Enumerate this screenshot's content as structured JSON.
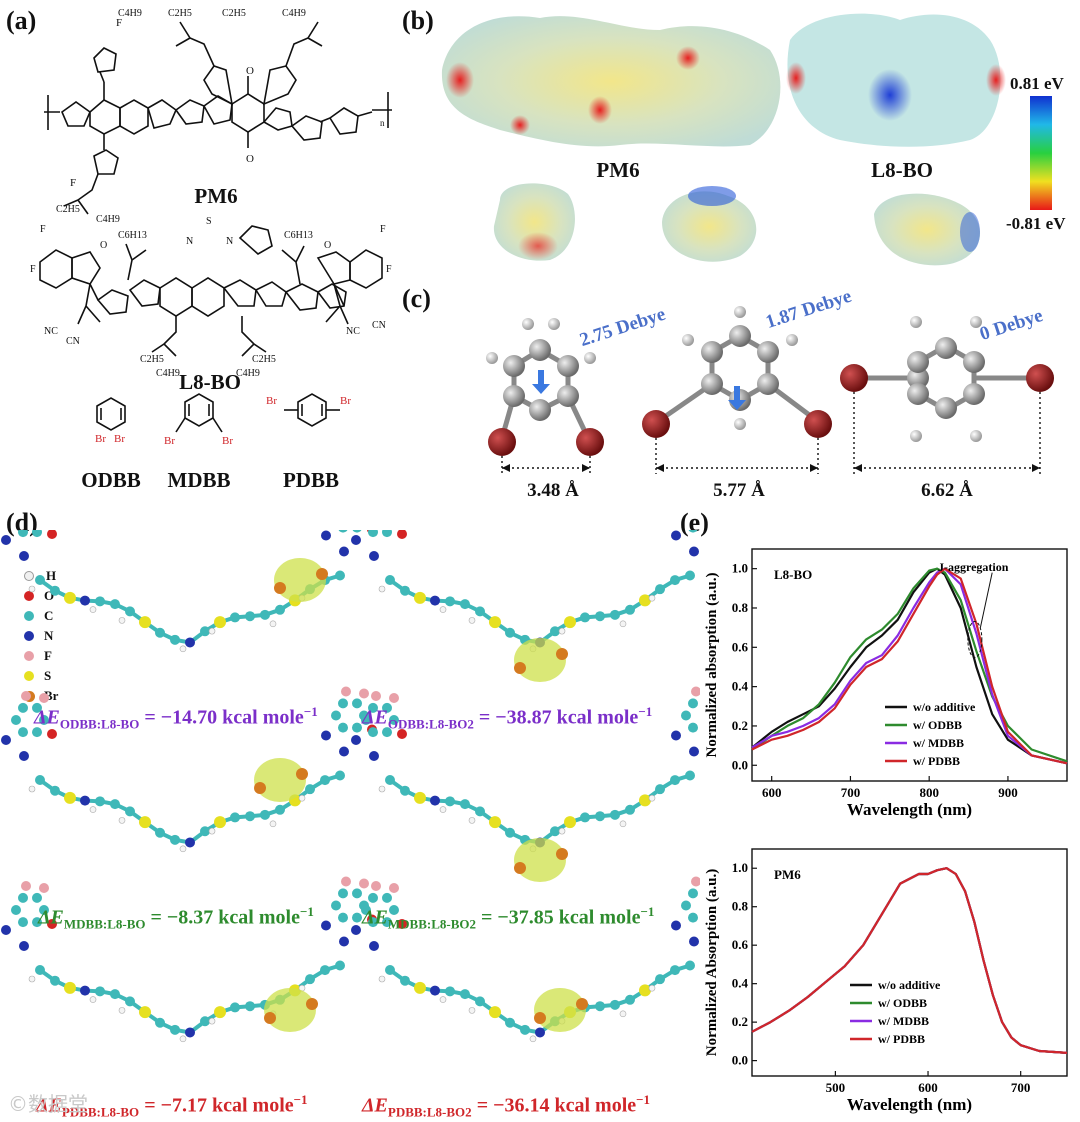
{
  "panels": {
    "a": "(a)",
    "b": "(b)",
    "c": "(c)",
    "d": "(d)",
    "e": "(e)"
  },
  "panel_a": {
    "pm6": "PM6",
    "l8bo": "L8-BO",
    "additives": [
      {
        "name": "ODBB",
        "br": [
          "Br",
          "Br"
        ]
      },
      {
        "name": "MDBB",
        "br": [
          "Br",
          "Br"
        ]
      },
      {
        "name": "PDBB",
        "br": [
          "Br",
          "Br"
        ]
      }
    ],
    "subs": {
      "c2h5": "C2H5",
      "c4h9": "C4H9",
      "c6h13": "C6H13",
      "f": "F",
      "o": "O",
      "s": "S",
      "n": "N",
      "nc": "NC",
      "cn": "CN",
      "n_sub": "n"
    }
  },
  "panel_b": {
    "pm6": "PM6",
    "l8bo": "L8-BO",
    "colorbar_max": "0.81 eV",
    "colorbar_min": "-0.81 eV"
  },
  "panel_c": {
    "molecules": [
      {
        "dipole": "2.75 Debye",
        "distance": "3.48 Å"
      },
      {
        "dipole": "1.87 Debye",
        "distance": "5.77 Å"
      },
      {
        "dipole": "0 Debye",
        "distance": "6.62 Å"
      }
    ]
  },
  "panel_d": {
    "legend": [
      {
        "el": "H",
        "color": "#f0f0f0"
      },
      {
        "el": "O",
        "color": "#d42424"
      },
      {
        "el": "C",
        "color": "#3fb8b8"
      },
      {
        "el": "N",
        "color": "#2233aa"
      },
      {
        "el": "F",
        "color": "#e8a0a8"
      },
      {
        "el": "S",
        "color": "#e6e020"
      },
      {
        "el": "Br",
        "color": "#d47a1f"
      }
    ],
    "energies": [
      {
        "prefix": "ΔE",
        "sub": "ODBB:L8-BO",
        "value": " = −14.70 kcal mole",
        "sup": "−1"
      },
      {
        "prefix": "ΔE",
        "sub": "ODBB:L8-BO2",
        "value": " = −38.87 kcal mole",
        "sup": "−1"
      },
      {
        "prefix": "ΔE",
        "sub": "MDBB:L8-BO",
        "value": " = −8.37 kcal mole",
        "sup": "−1"
      },
      {
        "prefix": "ΔE",
        "sub": "MDBB:L8-BO2",
        "value": " = −37.85 kcal mole",
        "sup": "−1"
      },
      {
        "prefix": "ΔE",
        "sub": "PDBB:L8-BO",
        "value": " = −7.17 kcal mole",
        "sup": "−1"
      },
      {
        "prefix": "ΔE",
        "sub": "PDBB:L8-BO2",
        "value": " = −36.14 kcal mole",
        "sup": "−1"
      }
    ],
    "colors": {
      "purple": "#7b2fc9",
      "green": "#2e8b2e",
      "red": "#d0262a"
    }
  },
  "watermark": "©数据堂",
  "chart_data": [
    {
      "type": "line",
      "inset_label": "L8-BO",
      "annotation": "J-aggregation",
      "xlabel": "Wavelength (nm)",
      "ylabel": "Normalized absorption (a.u.)",
      "xlim": [
        575,
        975
      ],
      "ylim": [
        -0.08,
        1.1
      ],
      "xticks": [
        600,
        700,
        800,
        900
      ],
      "yticks": [
        0.0,
        0.2,
        0.4,
        0.6,
        0.8,
        1.0
      ],
      "legend_position": "lower-right",
      "series": [
        {
          "name": "w/o additive",
          "color": "#111111",
          "x": [
            575,
            600,
            620,
            640,
            660,
            680,
            700,
            720,
            740,
            760,
            780,
            800,
            810,
            820,
            840,
            860,
            880,
            900,
            930,
            975
          ],
          "y": [
            0.09,
            0.17,
            0.22,
            0.26,
            0.3,
            0.39,
            0.5,
            0.6,
            0.66,
            0.74,
            0.88,
            0.98,
            1.0,
            0.97,
            0.8,
            0.5,
            0.26,
            0.13,
            0.05,
            0.01
          ]
        },
        {
          "name": "w/ ODBB",
          "color": "#2e8b2e",
          "x": [
            575,
            600,
            620,
            640,
            660,
            680,
            700,
            720,
            740,
            760,
            780,
            800,
            810,
            820,
            840,
            860,
            880,
            900,
            930,
            975
          ],
          "y": [
            0.08,
            0.15,
            0.2,
            0.24,
            0.31,
            0.42,
            0.55,
            0.64,
            0.69,
            0.77,
            0.9,
            0.99,
            1.0,
            0.98,
            0.84,
            0.58,
            0.35,
            0.2,
            0.08,
            0.02
          ]
        },
        {
          "name": "w/ MDBB",
          "color": "#8a2be2",
          "x": [
            575,
            600,
            620,
            640,
            660,
            680,
            700,
            720,
            740,
            760,
            780,
            800,
            810,
            820,
            840,
            860,
            880,
            900,
            930,
            975
          ],
          "y": [
            0.09,
            0.15,
            0.17,
            0.2,
            0.24,
            0.31,
            0.43,
            0.52,
            0.56,
            0.66,
            0.8,
            0.93,
            0.98,
            1.0,
            0.92,
            0.67,
            0.36,
            0.15,
            0.05,
            0.01
          ]
        },
        {
          "name": "w/ PDBB",
          "color": "#d0262a",
          "x": [
            575,
            600,
            620,
            640,
            660,
            680,
            700,
            720,
            740,
            760,
            780,
            800,
            810,
            820,
            840,
            860,
            880,
            900,
            930,
            975
          ],
          "y": [
            0.08,
            0.13,
            0.15,
            0.18,
            0.22,
            0.29,
            0.41,
            0.5,
            0.54,
            0.63,
            0.77,
            0.91,
            0.97,
            1.0,
            0.95,
            0.72,
            0.4,
            0.17,
            0.05,
            0.01
          ]
        }
      ]
    },
    {
      "type": "line",
      "inset_label": "PM6",
      "xlabel": "Wavelength (nm)",
      "ylabel": "Normalized Absorption (a.u.)",
      "xlim": [
        410,
        750
      ],
      "ylim": [
        -0.08,
        1.1
      ],
      "xticks": [
        500,
        600,
        700
      ],
      "yticks": [
        0.0,
        0.2,
        0.4,
        0.6,
        0.8,
        1.0
      ],
      "legend_position": "lower-center",
      "series": [
        {
          "name": "w/o additive",
          "color": "#111111",
          "x": [
            410,
            430,
            450,
            470,
            490,
            510,
            530,
            550,
            570,
            590,
            600,
            610,
            620,
            630,
            640,
            650,
            660,
            670,
            680,
            690,
            700,
            720,
            750
          ],
          "y": [
            0.15,
            0.2,
            0.26,
            0.33,
            0.41,
            0.49,
            0.6,
            0.76,
            0.92,
            0.97,
            0.97,
            0.99,
            1.0,
            0.97,
            0.88,
            0.72,
            0.52,
            0.34,
            0.2,
            0.12,
            0.08,
            0.05,
            0.04
          ]
        },
        {
          "name": "w/ ODBB",
          "color": "#2e8b2e",
          "x": [
            410,
            430,
            450,
            470,
            490,
            510,
            530,
            550,
            570,
            590,
            600,
            610,
            620,
            630,
            640,
            650,
            660,
            670,
            680,
            690,
            700,
            720,
            750
          ],
          "y": [
            0.15,
            0.2,
            0.26,
            0.33,
            0.41,
            0.49,
            0.6,
            0.76,
            0.92,
            0.97,
            0.97,
            0.99,
            1.0,
            0.97,
            0.88,
            0.72,
            0.52,
            0.34,
            0.2,
            0.12,
            0.08,
            0.05,
            0.04
          ]
        },
        {
          "name": "w/ MDBB",
          "color": "#8a2be2",
          "x": [
            410,
            430,
            450,
            470,
            490,
            510,
            530,
            550,
            570,
            590,
            600,
            610,
            620,
            630,
            640,
            650,
            660,
            670,
            680,
            690,
            700,
            720,
            750
          ],
          "y": [
            0.15,
            0.2,
            0.26,
            0.33,
            0.41,
            0.49,
            0.6,
            0.76,
            0.92,
            0.97,
            0.97,
            0.99,
            1.0,
            0.97,
            0.88,
            0.72,
            0.52,
            0.34,
            0.2,
            0.12,
            0.08,
            0.05,
            0.04
          ]
        },
        {
          "name": "w/ PDBB",
          "color": "#d0262a",
          "x": [
            410,
            430,
            450,
            470,
            490,
            510,
            530,
            550,
            570,
            590,
            600,
            610,
            620,
            630,
            640,
            650,
            660,
            670,
            680,
            690,
            700,
            720,
            750
          ],
          "y": [
            0.15,
            0.2,
            0.26,
            0.33,
            0.41,
            0.49,
            0.6,
            0.76,
            0.92,
            0.97,
            0.97,
            0.99,
            1.0,
            0.97,
            0.88,
            0.72,
            0.52,
            0.34,
            0.2,
            0.12,
            0.08,
            0.05,
            0.04
          ]
        }
      ]
    }
  ]
}
